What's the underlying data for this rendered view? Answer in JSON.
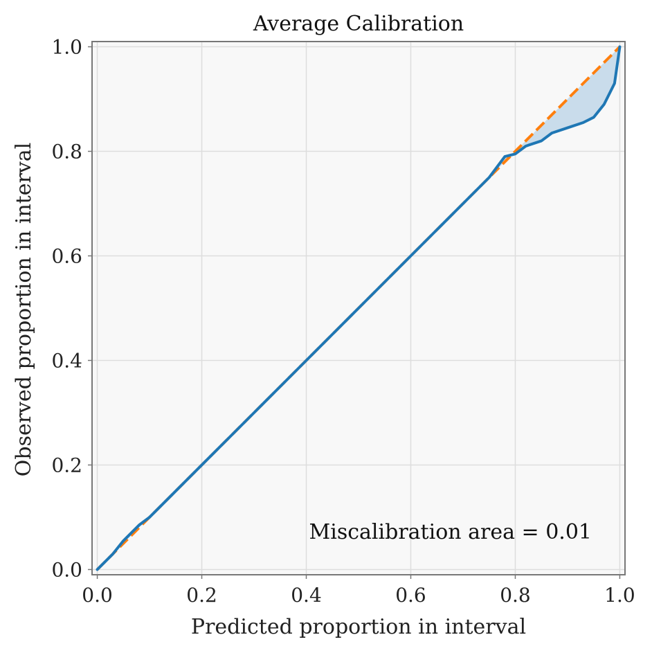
{
  "chart_data": {
    "type": "line",
    "title": "Average Calibration",
    "xlabel": "Predicted proportion in interval",
    "ylabel": "Observed proportion in interval",
    "xlim": [
      -0.01,
      1.01
    ],
    "ylim": [
      -0.01,
      1.01
    ],
    "xticks": [
      0.0,
      0.2,
      0.4,
      0.6,
      0.8,
      1.0
    ],
    "yticks": [
      0.0,
      0.2,
      0.4,
      0.6,
      0.8,
      1.0
    ],
    "xtick_labels": [
      "0.0",
      "0.2",
      "0.4",
      "0.6",
      "0.8",
      "1.0"
    ],
    "ytick_labels": [
      "0.0",
      "0.2",
      "0.4",
      "0.6",
      "0.8",
      "1.0"
    ],
    "grid": true,
    "annotation": "Miscalibration area = 0.01",
    "colors": {
      "observed": "#1f77b4",
      "ideal": "#ff7f0e",
      "fill": "#c9dceb",
      "plot_bg": "#f8f8f8",
      "grid": "#dddddd",
      "frame": "#777777"
    },
    "series": [
      {
        "name": "ideal",
        "style": "dashed",
        "x": [
          0.0,
          1.0
        ],
        "y": [
          0.0,
          1.0
        ]
      },
      {
        "name": "observed",
        "style": "solid",
        "x": [
          0.0,
          0.03,
          0.05,
          0.08,
          0.1,
          0.15,
          0.2,
          0.25,
          0.3,
          0.35,
          0.4,
          0.45,
          0.5,
          0.55,
          0.6,
          0.65,
          0.7,
          0.75,
          0.78,
          0.8,
          0.82,
          0.85,
          0.87,
          0.9,
          0.93,
          0.95,
          0.97,
          0.98,
          0.99,
          1.0
        ],
        "y": [
          0.0,
          0.03,
          0.055,
          0.085,
          0.1,
          0.15,
          0.2,
          0.25,
          0.3,
          0.35,
          0.4,
          0.45,
          0.5,
          0.55,
          0.6,
          0.65,
          0.7,
          0.75,
          0.79,
          0.795,
          0.81,
          0.82,
          0.835,
          0.845,
          0.855,
          0.865,
          0.89,
          0.91,
          0.93,
          1.0
        ]
      }
    ]
  }
}
